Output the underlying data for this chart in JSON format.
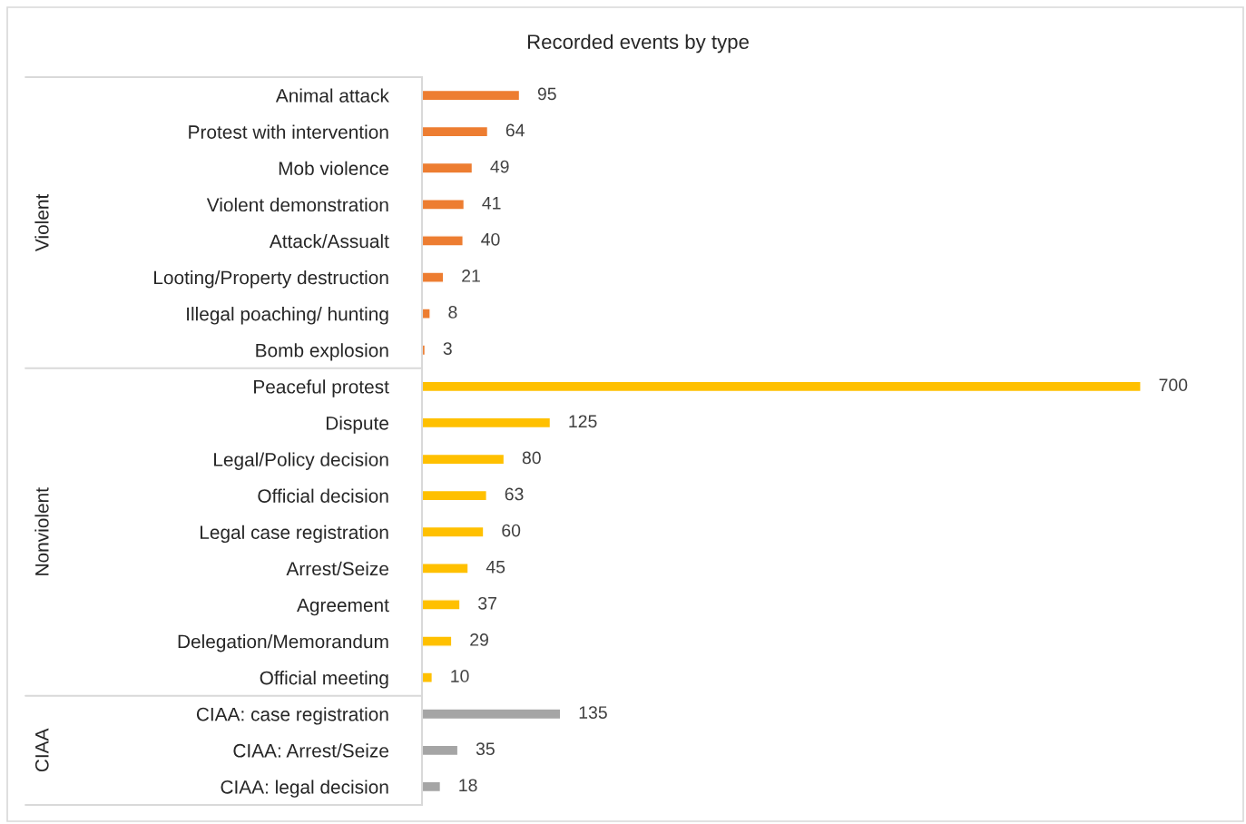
{
  "chart_data": {
    "type": "bar",
    "orientation": "horizontal",
    "title": "Recorded events by type",
    "categories": [
      "Animal attack",
      "Protest with intervention",
      "Mob violence",
      "Violent demonstration",
      "Attack/Assualt",
      "Looting/Property destruction",
      "Illegal poaching/ hunting",
      "Bomb explosion",
      "Peaceful protest",
      "Dispute",
      "Legal/Policy decision",
      "Official decision",
      "Legal case registration",
      "Arrest/Seize",
      "Agreement",
      "Delegation/Memorandum",
      "Official meeting",
      "CIAA: case registration",
      "CIAA: Arrest/Seize",
      "CIAA: legal decision"
    ],
    "series": [
      {
        "color": "#ed7d31",
        "values": [
          95,
          64,
          49,
          41,
          40,
          21,
          8,
          3,
          null,
          null,
          null,
          null,
          null,
          null,
          null,
          null,
          null,
          null,
          null,
          null
        ]
      },
      {
        "color": "#ffc000",
        "values": [
          null,
          null,
          null,
          null,
          null,
          null,
          null,
          null,
          700,
          125,
          80,
          63,
          60,
          45,
          37,
          29,
          10,
          null,
          null,
          null
        ]
      },
      {
        "color": "#a5a5a5",
        "values": [
          null,
          null,
          null,
          null,
          null,
          null,
          null,
          null,
          null,
          null,
          null,
          null,
          null,
          null,
          null,
          null,
          null,
          135,
          35,
          18
        ]
      }
    ],
    "annotations": [
      "Violent",
      "Nonviolent",
      "CIAA"
    ],
    "data_labels": true,
    "grid": false,
    "legend": false
  }
}
